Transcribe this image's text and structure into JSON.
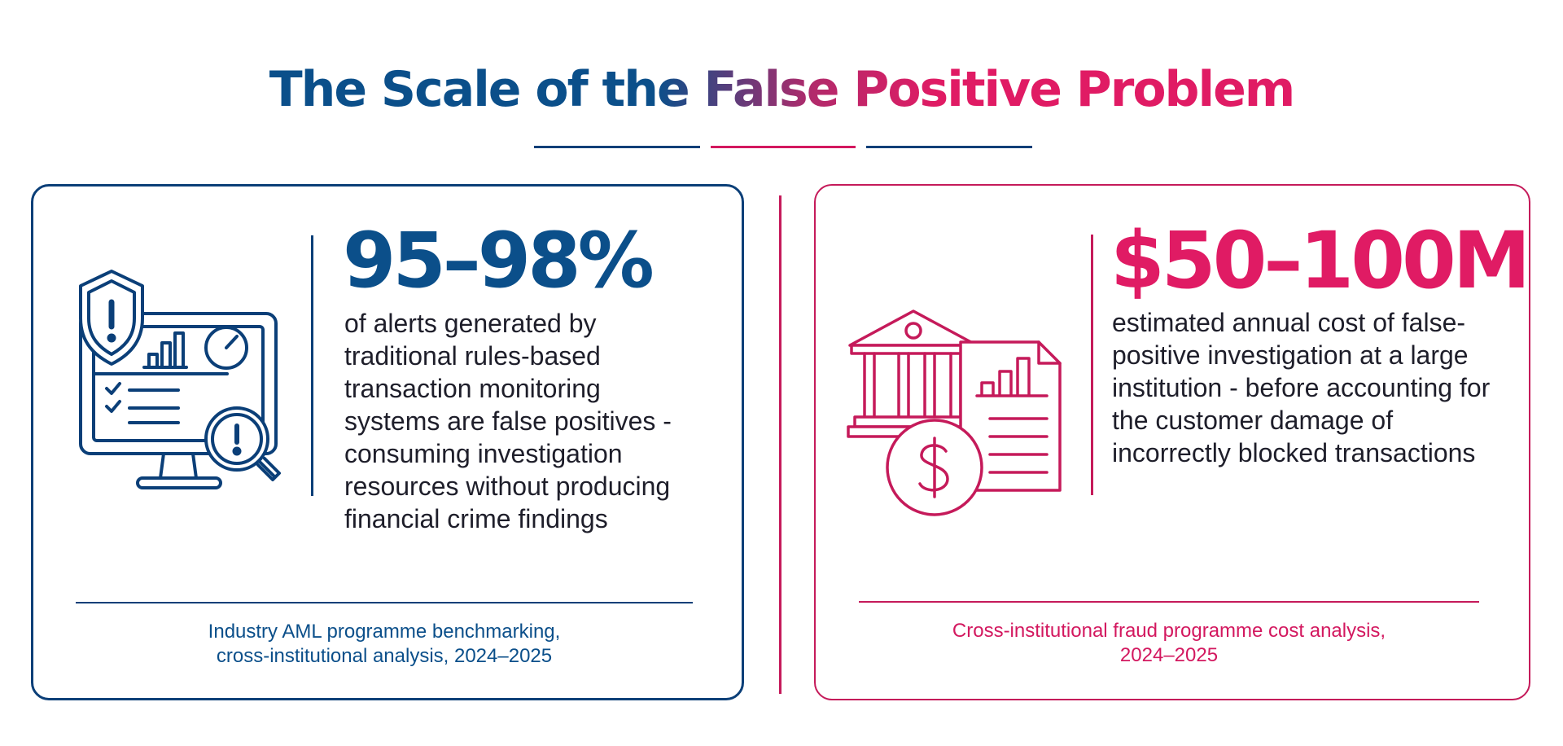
{
  "title": "The Scale of the False Positive Problem",
  "colors": {
    "navy": "#0b3f78",
    "blue_text": "#0b4f8a",
    "pink": "#e01b64",
    "pink_line": "#c51a5a",
    "body_text": "#1e1e2a"
  },
  "left_card": {
    "icon": "monitor-shield-magnifier-icon",
    "stat": "95–98%",
    "description": "of alerts generated by traditional rules-based transaction monitoring systems are false positives - consuming investigation resources without producing financial crime findings",
    "source_line1": "Industry AML programme benchmarking,",
    "source_line2": "cross-institutional analysis, 2024–2025"
  },
  "right_card": {
    "icon": "bank-document-dollar-icon",
    "stat": "$50–100M",
    "description": "estimated annual cost of false-positive investigation at a large institution - before accounting for the customer damage of incorrectly blocked transactions",
    "source_line1": "Cross-institutional fraud programme cost analysis,",
    "source_line2": "2024–2025"
  }
}
